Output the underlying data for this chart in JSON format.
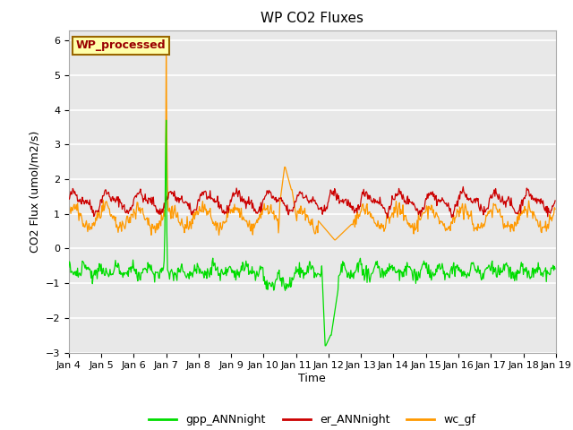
{
  "title": "WP CO2 Fluxes",
  "xlabel": "Time",
  "ylabel": "CO2 Flux (umol/m2/s)",
  "ylim": [
    -3.0,
    6.3
  ],
  "yticks": [
    -3.0,
    -2.0,
    -1.0,
    0.0,
    1.0,
    2.0,
    3.0,
    4.0,
    5.0,
    6.0
  ],
  "xtick_labels": [
    "Jan 4",
    "Jan 5",
    "Jan 6",
    "Jan 7",
    "Jan 8",
    "Jan 9",
    "Jan 10",
    "Jan 11",
    "Jan 12",
    "Jan 13",
    "Jan 14",
    "Jan 15",
    "Jan 16",
    "Jan 17",
    "Jan 18",
    "Jan 19"
  ],
  "line_colors": {
    "gpp": "#00dd00",
    "er": "#cc0000",
    "wc": "#ff9900"
  },
  "line_labels": {
    "gpp": "gpp_ANNnight",
    "er": "er_ANNnight",
    "wc": "wc_gf"
  },
  "annotation_text": "WP_processed",
  "annotation_facecolor": "#ffffaa",
  "annotation_edgecolor": "#996600",
  "annotation_textcolor": "#990000",
  "fig_bg_color": "#ffffff",
  "plot_bg_color": "#e8e8e8",
  "grid_color": "#ffffff",
  "seed": 42
}
